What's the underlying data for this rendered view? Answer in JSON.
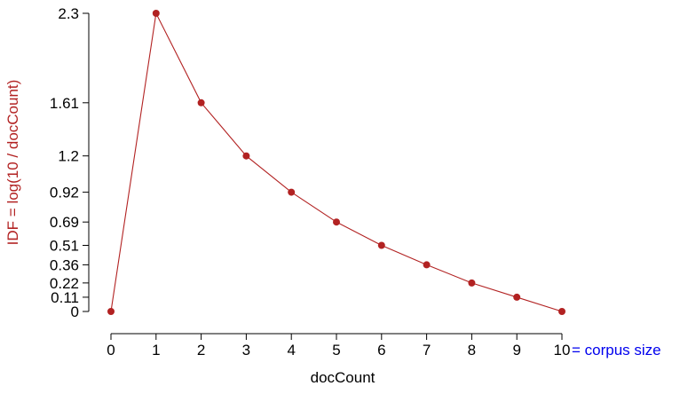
{
  "chart_data": {
    "type": "line",
    "title": "",
    "xlabel": "docCount",
    "ylabel": "IDF = log(10 / docCount)",
    "x_ticks": [
      0,
      1,
      2,
      3,
      4,
      5,
      6,
      7,
      8,
      9,
      10
    ],
    "x_tick_labels": [
      "0",
      "1",
      "2",
      "3",
      "4",
      "5",
      "6",
      "7",
      "8",
      "9",
      "10"
    ],
    "x_annotation": "= corpus size",
    "y_ticks": [
      0,
      0.11,
      0.22,
      0.36,
      0.51,
      0.69,
      0.92,
      1.2,
      1.61,
      2.3
    ],
    "y_tick_labels": [
      "0",
      "0.11",
      "0.22",
      "0.36",
      "0.51",
      "0.69",
      "0.92",
      "1.2",
      "1.61",
      "2.3"
    ],
    "xlim": [
      0,
      10
    ],
    "ylim": [
      0,
      2.3
    ],
    "grid": false,
    "series": [
      {
        "x": [
          0,
          1,
          2,
          3,
          4,
          5,
          6,
          7,
          8,
          9,
          10
        ],
        "y": [
          0,
          2.3,
          1.61,
          1.2,
          0.92,
          0.69,
          0.51,
          0.36,
          0.22,
          0.11,
          0
        ],
        "color": "#b22222"
      }
    ],
    "colors": {
      "series": "#b22222",
      "ylabel": "#b22222",
      "annotation": "#0000ee",
      "axis": "#000000"
    }
  }
}
